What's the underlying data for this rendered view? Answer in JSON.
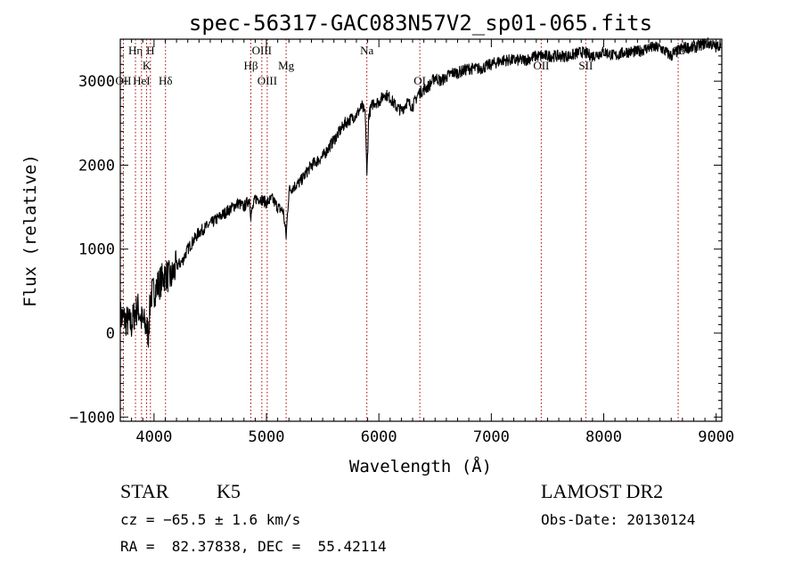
{
  "chart_data": {
    "type": "line",
    "title": "spec-56317-GAC083N57V2_sp01-065.fits",
    "xlabel": "Wavelength (Å)",
    "ylabel": "Flux (relative)",
    "xlim": [
      3700,
      9050
    ],
    "ylim": [
      -1050,
      3500
    ],
    "x_ticks": [
      4000,
      5000,
      6000,
      7000,
      8000,
      9000
    ],
    "x_tick_labels": [
      "4000",
      "5000",
      "6000",
      "7000",
      "8000",
      "9000"
    ],
    "y_ticks": [
      -1000,
      0,
      1000,
      2000,
      3000
    ],
    "y_tick_labels": [
      "−1000",
      "0",
      "1000",
      "2000",
      "3000"
    ],
    "grid": false,
    "series": [
      {
        "x": [
          3700,
          3750,
          3800,
          3830,
          3860,
          3890,
          3920,
          3950,
          3970,
          4000,
          4050,
          4100,
          4150,
          4200,
          4250,
          4300,
          4350,
          4400,
          4450,
          4500,
          4550,
          4600,
          4650,
          4700,
          4750,
          4800,
          4850,
          4861,
          4900,
          4950,
          5000,
          5050,
          5100,
          5150,
          5175,
          5200,
          5250,
          5300,
          5350,
          5400,
          5450,
          5500,
          5550,
          5600,
          5650,
          5700,
          5750,
          5800,
          5850,
          5880,
          5893,
          5910,
          5950,
          6000,
          6050,
          6100,
          6150,
          6200,
          6250,
          6300,
          6350,
          6400,
          6450,
          6500,
          6550,
          6600,
          6650,
          6700,
          6800,
          6900,
          7000,
          7100,
          7200,
          7300,
          7400,
          7500,
          7600,
          7700,
          7800,
          7900,
          8000,
          8100,
          8200,
          8300,
          8400,
          8500,
          8600,
          8700,
          8800,
          8900,
          8950,
          9000,
          9040
        ],
        "y": [
          200,
          150,
          100,
          250,
          300,
          150,
          100,
          0,
          450,
          500,
          600,
          700,
          650,
          800,
          850,
          1000,
          1100,
          1200,
          1250,
          1300,
          1350,
          1400,
          1450,
          1500,
          1550,
          1500,
          1600,
          1400,
          1600,
          1600,
          1550,
          1600,
          1500,
          1450,
          1150,
          1700,
          1750,
          1800,
          1900,
          2000,
          2050,
          2100,
          2200,
          2300,
          2400,
          2500,
          2550,
          2600,
          2700,
          2600,
          1850,
          2600,
          2750,
          2750,
          2850,
          2800,
          2700,
          2650,
          2750,
          2700,
          2850,
          2900,
          2950,
          3050,
          3000,
          3050,
          3100,
          3100,
          3150,
          3150,
          3200,
          3250,
          3250,
          3250,
          3300,
          3300,
          3300,
          3300,
          3350,
          3300,
          3350,
          3300,
          3350,
          3350,
          3400,
          3400,
          3300,
          3400,
          3400,
          3450,
          3450,
          3400,
          3450
        ]
      }
    ],
    "line_markers": [
      {
        "label": "OII",
        "x": 3727,
        "row": 2
      },
      {
        "label": "Hη",
        "x": 3835,
        "row": 0
      },
      {
        "label": "HeI",
        "x": 3889,
        "row": 2
      },
      {
        "label": "K",
        "x": 3934,
        "row": 1
      },
      {
        "label": "H",
        "x": 3968,
        "row": 0
      },
      {
        "label": "Hδ",
        "x": 4102,
        "row": 2
      },
      {
        "label": "Hβ",
        "x": 4861,
        "row": 1
      },
      {
        "label": "OIII",
        "x": 4959,
        "row": 0
      },
      {
        "label": "OIII",
        "x": 5007,
        "row": 2
      },
      {
        "label": "Mg",
        "x": 5175,
        "row": 1
      },
      {
        "label": "Na",
        "x": 5893,
        "row": 0
      },
      {
        "label": "OI",
        "x": 6364,
        "row": 2
      },
      {
        "label": "OII",
        "x": 7444,
        "row": 1
      },
      {
        "label": "SII",
        "x": 7840,
        "row": 1
      },
      {
        "label": "Ca",
        "x": 8662,
        "row": 0
      }
    ],
    "colors": {
      "spectrum": "#000000",
      "markers": "#b00000"
    }
  },
  "footer": {
    "object_type": "STAR",
    "subclass": "K5",
    "survey": "LAMOST DR2",
    "redshift": "cz = −65.5 ± 1.6 km/s",
    "obs_date": "Obs-Date: 20130124",
    "coords": "RA =  82.37838, DEC =  55.42114"
  }
}
